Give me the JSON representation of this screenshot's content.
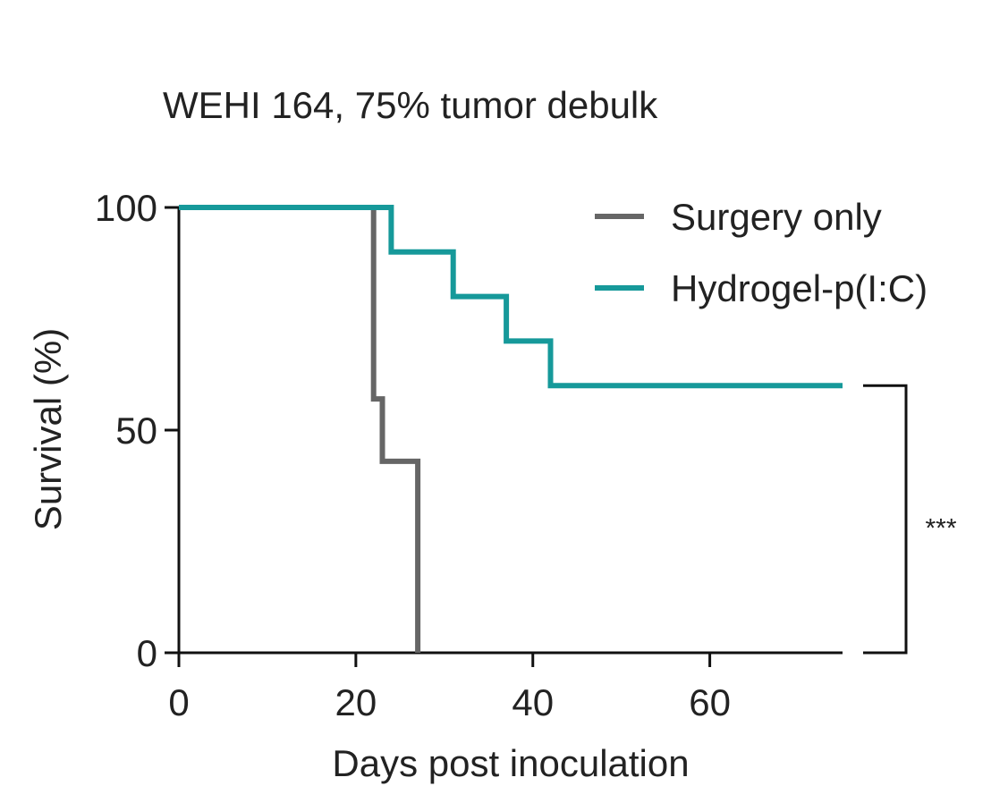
{
  "chart_data": {
    "type": "line",
    "subtype": "kaplan-meier-step",
    "title": "WEHI 164, 75% tumor debulk",
    "xlabel": "Days post inoculation",
    "ylabel": "Survival (%)",
    "xlim": [
      0,
      75
    ],
    "ylim": [
      0,
      100
    ],
    "xticks": [
      0,
      20,
      40,
      60
    ],
    "yticks": [
      0,
      50,
      100
    ],
    "legend_position": "top-right",
    "grid": false,
    "series": [
      {
        "name": "Surgery only",
        "color": "#666666",
        "x": [
          0,
          22,
          22,
          23,
          23,
          27,
          27
        ],
        "y": [
          100,
          100,
          57,
          57,
          43,
          43,
          0
        ]
      },
      {
        "name": "Hydrogel-p(I:C)",
        "color": "#16999a",
        "x": [
          0,
          24,
          24,
          31,
          31,
          37,
          37,
          42,
          42,
          75
        ],
        "y": [
          100,
          100,
          90,
          90,
          80,
          80,
          70,
          70,
          60,
          60
        ]
      }
    ],
    "annotations": [
      {
        "type": "significance-bracket",
        "label": "***",
        "y_from": 60,
        "y_to": 0
      }
    ]
  }
}
